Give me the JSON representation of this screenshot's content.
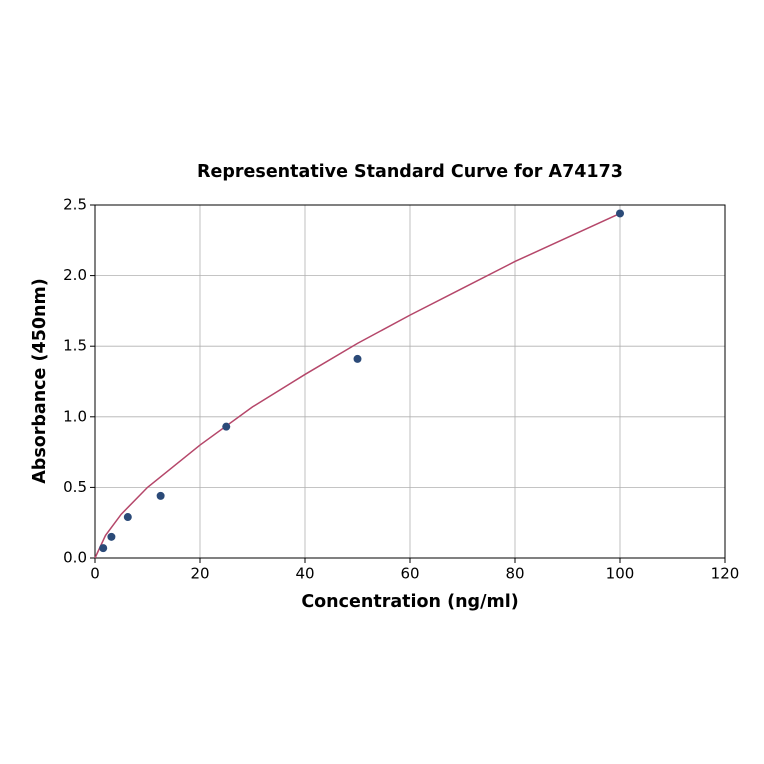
{
  "chart_data": {
    "type": "scatter",
    "title": "Representative Standard Curve for A74173",
    "x_label": "Concentration (ng/ml)",
    "y_label": "Absorbance (450nm)",
    "xlim": [
      0,
      120
    ],
    "xticks": [
      0,
      20,
      40,
      60,
      80,
      100,
      120
    ],
    "ylim": [
      0,
      2.5
    ],
    "yticks": [
      {
        "value": 0,
        "label": "0.0"
      },
      0.5,
      {
        "value": 1,
        "label": "1.0"
      },
      1.5,
      {
        "value": 2,
        "label": "2.0"
      },
      2.5
    ],
    "grid": true,
    "series": [
      {
        "type": "line",
        "color": "#b5476a",
        "x": [
          0,
          2,
          5,
          10,
          20,
          30,
          40,
          50,
          60,
          70,
          80,
          90,
          100
        ],
        "values": [
          0,
          0.16,
          0.31,
          0.5,
          0.8,
          1.07,
          1.3,
          1.52,
          1.72,
          1.91,
          2.1,
          2.27,
          2.44
        ]
      },
      {
        "type": "scatter",
        "color": "#2b4a78",
        "x": [
          1.5625,
          3.125,
          6.25,
          12.5,
          25,
          50,
          100
        ],
        "values": [
          0.07,
          0.15,
          0.29,
          0.44,
          0.93,
          1.41,
          2.44
        ]
      }
    ]
  }
}
